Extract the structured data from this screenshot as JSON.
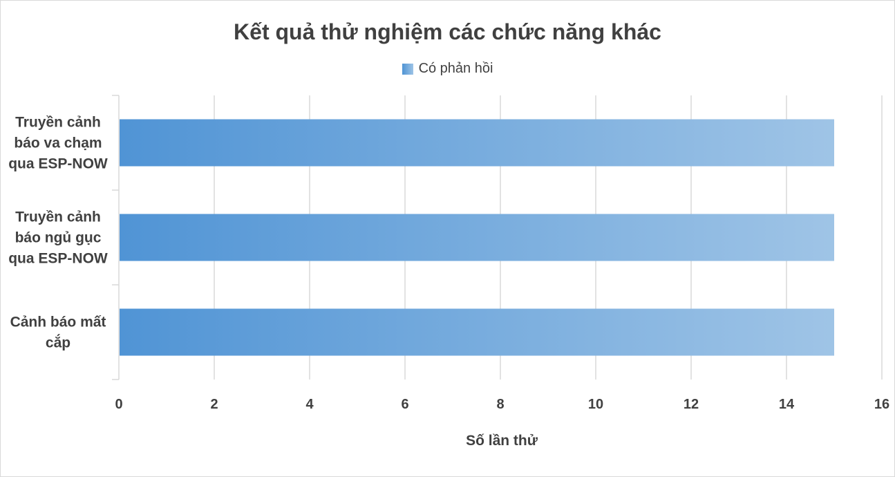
{
  "chart_data": {
    "type": "bar",
    "orientation": "horizontal",
    "title": "Kết quả thử nghiệm các chức năng khác",
    "xlabel": "Số lần thử",
    "ylabel": "",
    "categories": [
      [
        "Truyền cảnh",
        "báo va chạm",
        "qua ESP-NOW"
      ],
      [
        "Truyền cảnh",
        "báo ngủ gục",
        "qua ESP-NOW"
      ],
      [
        "Cảnh báo mất",
        "cắp"
      ]
    ],
    "series": [
      {
        "name": "Có phản hồi",
        "values": [
          15,
          15,
          15
        ]
      }
    ],
    "xlim": [
      0,
      16
    ],
    "xticks": [
      "0",
      "2",
      "4",
      "6",
      "8",
      "10",
      "12",
      "14",
      "16"
    ],
    "grid": true,
    "legend_position": "top",
    "colors": {
      "bar_start": "#5094d5",
      "bar_end": "#9fc4e6",
      "grid": "#d9d9d9",
      "text": "#404040"
    }
  }
}
